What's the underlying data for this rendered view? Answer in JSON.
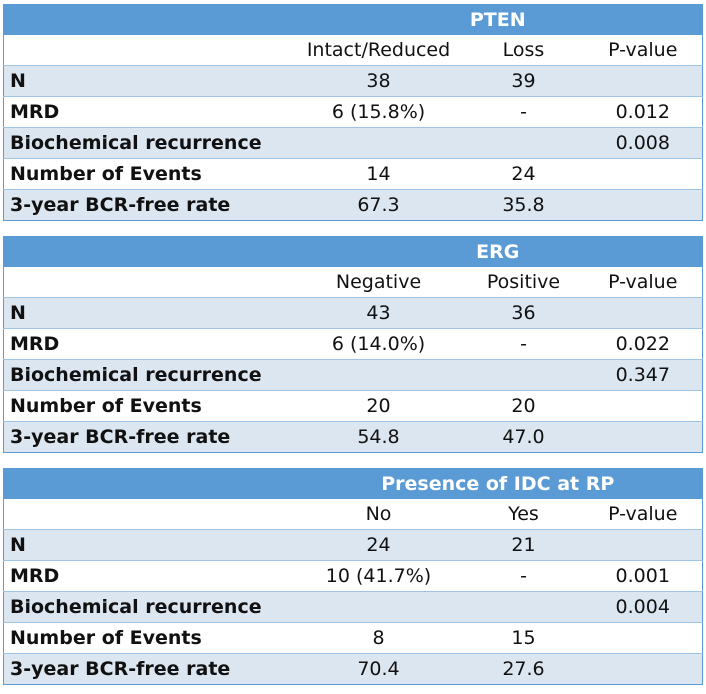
{
  "tables": [
    {
      "title": "PTEN",
      "columns": [
        "Intact/Reduced",
        "Loss",
        "P-value"
      ],
      "rows": [
        {
          "label": "N",
          "cells": [
            "38",
            "39",
            null
          ]
        },
        {
          "label": "MRD",
          "cells": [
            "6 (15.8%)",
            "-",
            "0.012"
          ]
        },
        {
          "label": "Biochemical recurrence",
          "cells": [
            null,
            null,
            "0.008"
          ]
        },
        {
          "label": "Number of Events",
          "cells": [
            "14",
            "24",
            null
          ]
        },
        {
          "label": "3-year BCR-free rate",
          "cells": [
            "67.3",
            "35.8",
            null
          ]
        }
      ]
    },
    {
      "title": "ERG",
      "columns": [
        "Negative",
        "Positive",
        "P-value"
      ],
      "rows": [
        {
          "label": "N",
          "cells": [
            "43",
            "36",
            null
          ]
        },
        {
          "label": "MRD",
          "cells": [
            "6 (14.0%)",
            "-",
            "0.022"
          ]
        },
        {
          "label": "Biochemical recurrence",
          "cells": [
            null,
            null,
            "0.347"
          ]
        },
        {
          "label": "Number of Events",
          "cells": [
            "20",
            "20",
            null
          ]
        },
        {
          "label": "3-year BCR-free rate",
          "cells": [
            "54.8",
            "47.0",
            null
          ]
        }
      ]
    },
    {
      "title": "Presence of IDC at RP",
      "columns": [
        "No",
        "Yes",
        "P-value"
      ],
      "rows": [
        {
          "label": "N",
          "cells": [
            "24",
            "21",
            null
          ]
        },
        {
          "label": "MRD",
          "cells": [
            "10 (41.7%)",
            "-",
            "0.001"
          ]
        },
        {
          "label": "Biochemical recurrence",
          "cells": [
            null,
            null,
            "0.004"
          ]
        },
        {
          "label": "Number of Events",
          "cells": [
            "8",
            "15",
            null
          ]
        },
        {
          "label": "3-year BCR-free rate",
          "cells": [
            "70.4",
            "27.6",
            null
          ]
        }
      ]
    }
  ]
}
